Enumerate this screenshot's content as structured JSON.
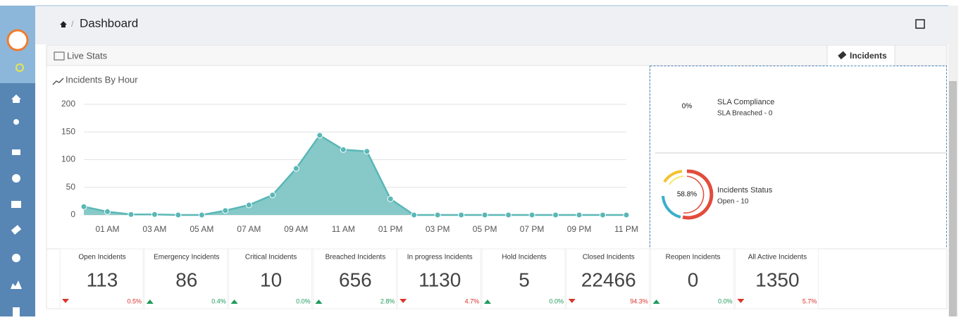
{
  "header": {
    "title": "Dashboard"
  },
  "tabs": {
    "left": "Live Stats",
    "right": "Incidents"
  },
  "chart_data": {
    "type": "area",
    "title": "Incidents By Hour",
    "categories": [
      null,
      "01 AM",
      null,
      "03 AM",
      null,
      "05 AM",
      null,
      "07 AM",
      null,
      "09 AM",
      null,
      "11 AM",
      null,
      "01 PM",
      null,
      "03 PM",
      null,
      "05 PM",
      null,
      "07 PM",
      null,
      "09 PM",
      null,
      "11 PM"
    ],
    "values": [
      15,
      6,
      1,
      1,
      0,
      0,
      8,
      18,
      36,
      84,
      144,
      118,
      115,
      29,
      0,
      0,
      0,
      0,
      0,
      0,
      0,
      0,
      0,
      0
    ],
    "color": "#5bb7b7",
    "fill": "#86c9c8",
    "ylim": [
      0,
      200
    ],
    "yticks": [
      0,
      50,
      100,
      150,
      200
    ],
    "grid": true
  },
  "sla": {
    "percent": "0%",
    "title": "SLA Compliance",
    "detail": "SLA Breached - 0"
  },
  "status": {
    "percent": "58.8%",
    "title": "Incidents Status",
    "detail": "Open - 10"
  },
  "stats": [
    {
      "name": "Open Incidents",
      "value": "113",
      "direction": "down",
      "change": "0.5%"
    },
    {
      "name": "Emergency Incidents",
      "value": "86",
      "direction": "up",
      "change": "0.4%"
    },
    {
      "name": "Critical Incidents",
      "value": "10",
      "direction": "up",
      "change": "0.0%"
    },
    {
      "name": "Breached Incidents",
      "value": "656",
      "direction": "up",
      "change": "2.8%"
    },
    {
      "name": "In progress Incidents",
      "value": "1130",
      "direction": "down",
      "change": "4.7%"
    },
    {
      "name": "Hold Incidents",
      "value": "5",
      "direction": "up",
      "change": "0.0%"
    },
    {
      "name": "Closed Incidents",
      "value": "22466",
      "direction": "down",
      "change": "94.3%"
    },
    {
      "name": "Reopen Incidents",
      "value": "0",
      "direction": "up",
      "change": "0.0%"
    },
    {
      "name": "All Active Incidents",
      "value": "1350",
      "direction": "down",
      "change": "5.7%"
    }
  ]
}
